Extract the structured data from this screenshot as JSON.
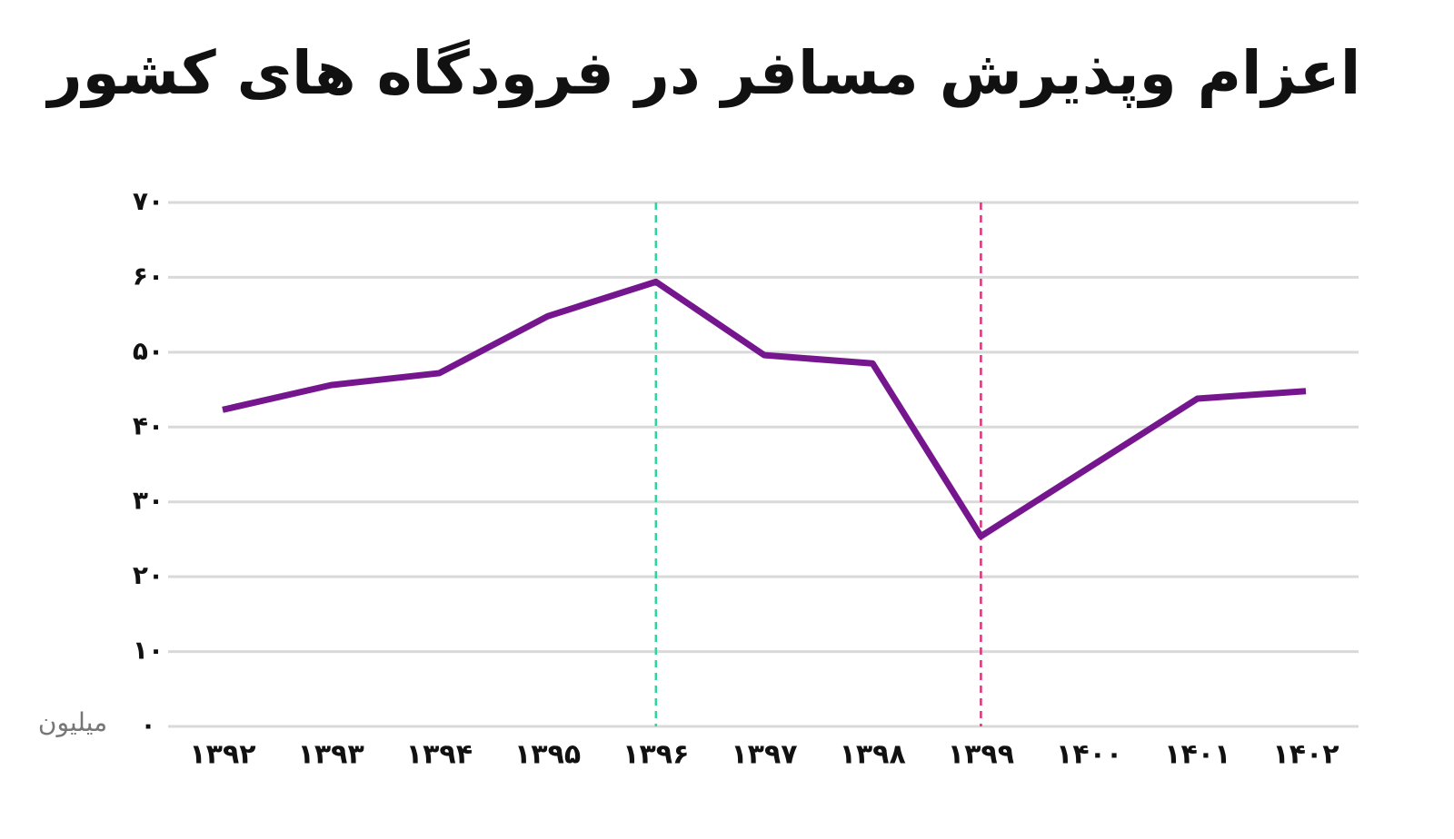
{
  "chart_data": {
    "type": "line",
    "title": "اعزام وپذیرش مسافر در فرودگاه های کشور",
    "unit_label": "میلیون",
    "categories": [
      "۱۳۹۲",
      "۱۳۹۳",
      "۱۳۹۴",
      "۱۳۹۵",
      "۱۳۹۶",
      "۱۳۹۷",
      "۱۳۹۸",
      "۱۳۹۹",
      "۱۴۰۰",
      "۱۴۰۱",
      "۱۴۰۲"
    ],
    "series": [
      {
        "color": "#76168f",
        "values": [
          42.3,
          45.6,
          47.2,
          54.8,
          59.4,
          49.6,
          48.5,
          25.4,
          34.6,
          43.8,
          44.8
        ]
      }
    ],
    "vlines": [
      {
        "x": "۱۳۹۶",
        "color": "#2ed69c"
      },
      {
        "x": "۱۳۹۹",
        "color": "#e0317a"
      }
    ],
    "ylim": [
      0,
      70
    ],
    "yticks": [
      {
        "value": 0,
        "label": "۰"
      },
      {
        "value": 10,
        "label": "۱۰"
      },
      {
        "value": 20,
        "label": "۲۰"
      },
      {
        "value": 30,
        "label": "۳۰"
      },
      {
        "value": 40,
        "label": "۴۰"
      },
      {
        "value": 50,
        "label": "۵۰"
      },
      {
        "value": 60,
        "label": "۶۰"
      },
      {
        "value": 70,
        "label": "۷۰"
      }
    ],
    "grid": true
  }
}
